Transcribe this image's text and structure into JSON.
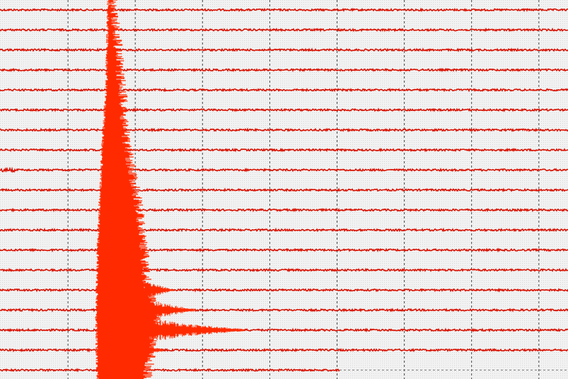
{
  "chart_data": {
    "type": "helicorder",
    "color": "#d81000",
    "grid": true
  }
}
